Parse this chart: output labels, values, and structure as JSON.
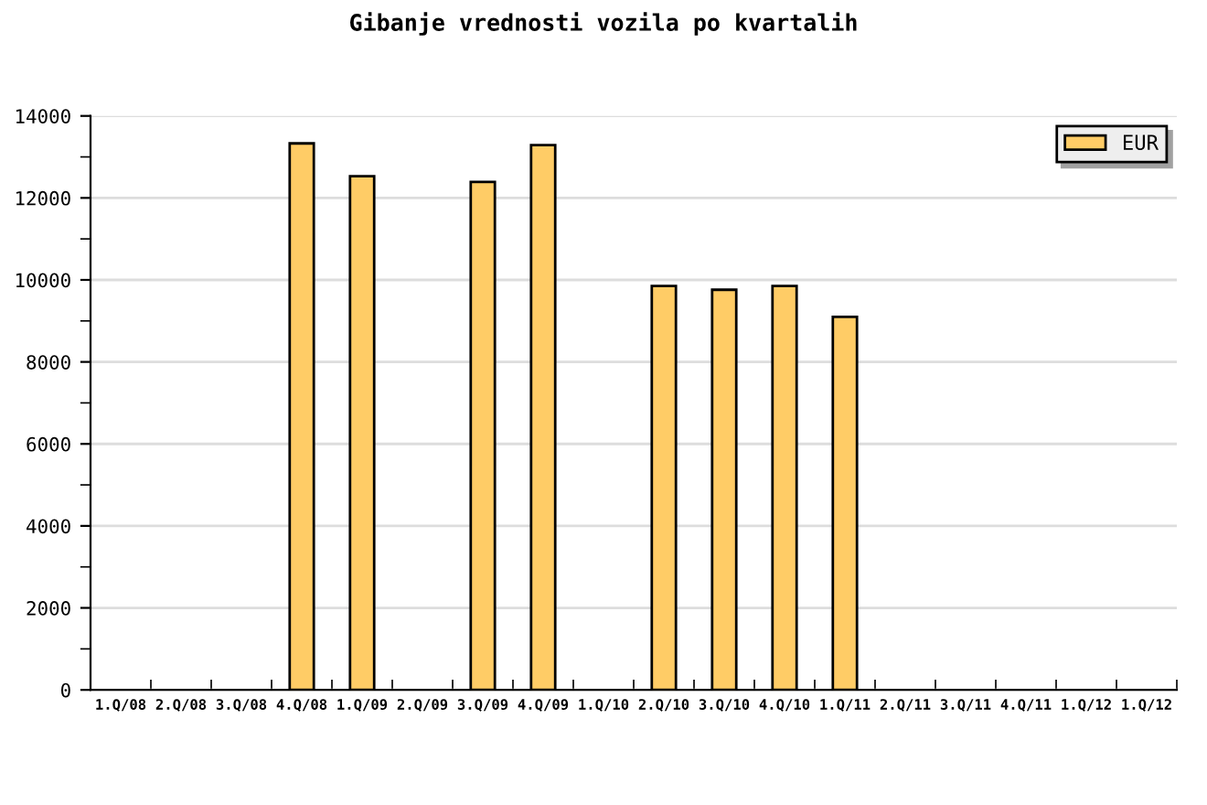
{
  "chart_data": {
    "type": "bar",
    "title": "Gibanje vrednosti vozila po kvartalih",
    "categories": [
      "1.Q/08",
      "2.Q/08",
      "3.Q/08",
      "4.Q/08",
      "1.Q/09",
      "2.Q/09",
      "3.Q/09",
      "4.Q/09",
      "1.Q/10",
      "2.Q/10",
      "3.Q/10",
      "4.Q/10",
      "1.Q/11",
      "2.Q/11",
      "3.Q/11",
      "4.Q/11",
      "1.Q/12",
      "1.Q/12"
    ],
    "series": [
      {
        "name": "EUR",
        "color": "#ffcc66",
        "values": [
          null,
          null,
          null,
          13330,
          12530,
          null,
          12390,
          13290,
          null,
          9850,
          9760,
          9850,
          9100,
          null,
          null,
          null,
          null,
          null
        ]
      }
    ],
    "ylim": [
      0,
      14000
    ],
    "yticks": [
      0,
      2000,
      4000,
      6000,
      8000,
      10000,
      12000,
      14000
    ],
    "grid": "y",
    "legend": "top right"
  }
}
